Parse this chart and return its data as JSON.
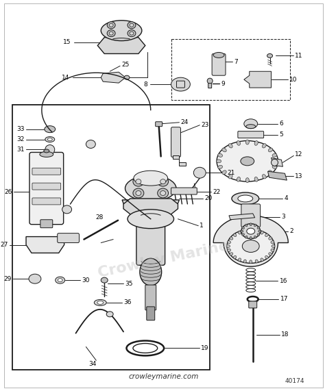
{
  "bg_color": "#ffffff",
  "line_color": "#1a1a1a",
  "text_color": "#000000",
  "watermark_text": "Crowley Marine",
  "footer_text": "crowleymarine.com",
  "part_number": "40174",
  "fig_width": 4.74,
  "fig_height": 5.71,
  "dpi": 100
}
